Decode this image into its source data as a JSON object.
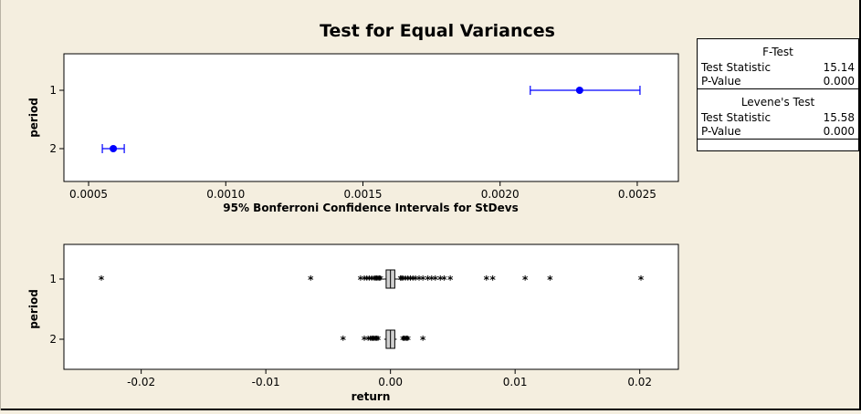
{
  "chart_data": {
    "type": "scatter",
    "title": "Test for Equal Variances",
    "panels": [
      {
        "kind": "confidence-intervals",
        "xlabel": "95% Bonferroni Confidence Intervals for StDevs",
        "ylabel": "period",
        "categories": [
          "1",
          "2"
        ],
        "xlim": [
          0.00041,
          0.00265
        ],
        "xticks": [
          "0.0005",
          "0.0010",
          "0.0015",
          "0.0020",
          "0.0025"
        ],
        "xtick_values": [
          0.0005,
          0.001,
          0.0015,
          0.002,
          0.0025
        ],
        "intervals": [
          {
            "category": "1",
            "low": 0.00211,
            "point": 0.00229,
            "high": 0.00251
          },
          {
            "category": "2",
            "low": 0.00055,
            "point": 0.00059,
            "high": 0.00063
          }
        ],
        "color": "#0000ff"
      },
      {
        "kind": "boxplot",
        "xlabel": "return",
        "ylabel": "period",
        "categories": [
          "1",
          "2"
        ],
        "xlim": [
          -0.0262,
          0.0231
        ],
        "xticks": [
          "-0.02",
          "-0.01",
          "0.00",
          "0.01",
          "0.02"
        ],
        "xtick_values": [
          -0.02,
          -0.01,
          0.0,
          0.01,
          0.02
        ],
        "boxes": [
          {
            "category": "1",
            "q1": -0.0002,
            "median": 0.0,
            "q3": 0.0002,
            "whisker_low": -0.0006,
            "whisker_high": 0.0006,
            "outliers": [
              -0.0232,
              -0.0064,
              -0.0024,
              -0.0021,
              -0.0019,
              -0.0017,
              -0.0015,
              -0.0013,
              -0.0012,
              -0.0011,
              -0.001,
              -0.0009,
              -0.0008,
              0.0008,
              0.0009,
              0.001,
              0.0012,
              0.0014,
              0.0016,
              0.0018,
              0.002,
              0.0023,
              0.0026,
              0.003,
              0.0033,
              0.0036,
              0.004,
              0.0043,
              0.0048,
              0.0077,
              0.0082,
              0.0108,
              0.0128,
              0.0201
            ]
          },
          {
            "category": "2",
            "q1": -0.0002,
            "median": 0.0,
            "q3": 0.0002,
            "whisker_low": -0.0005,
            "whisker_high": 0.0005,
            "outliers": [
              -0.0038,
              -0.0021,
              -0.0018,
              -0.0016,
              -0.0015,
              -0.0014,
              -0.0013,
              -0.0012,
              -0.0011,
              -0.001,
              0.001,
              0.0011,
              0.0012,
              0.0013,
              0.0014,
              0.0026
            ]
          }
        ]
      }
    ]
  },
  "stats": {
    "f_test": {
      "heading": "F-Test",
      "stat_label": "Test Statistic",
      "stat_value": "15.14",
      "p_label": "P-Value",
      "p_value": "0.000"
    },
    "levene": {
      "heading": "Levene's Test",
      "stat_label": "Test Statistic",
      "stat_value": "15.58",
      "p_label": "P-Value",
      "p_value": "0.000"
    }
  }
}
